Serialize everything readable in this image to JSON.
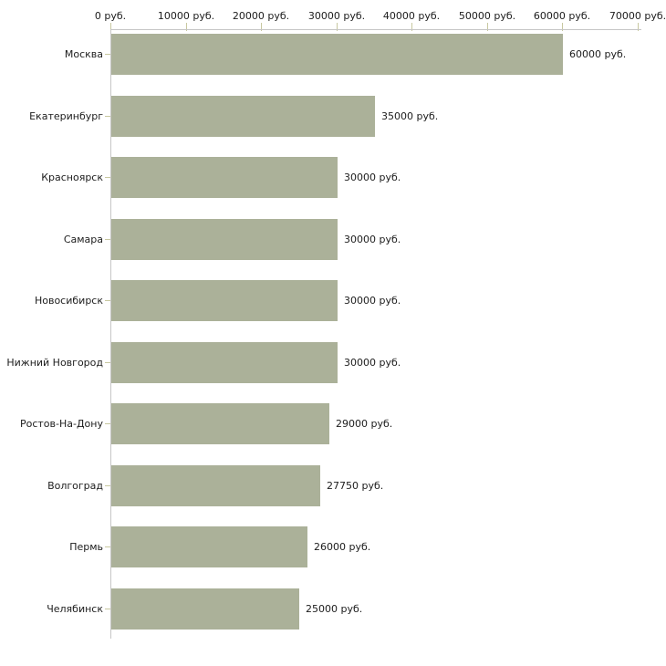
{
  "chart_data": {
    "type": "bar",
    "orientation": "horizontal",
    "title": "",
    "xlabel": "",
    "ylabel": "",
    "xlim": [
      0,
      70000
    ],
    "grid": false,
    "legend": false,
    "categories": [
      "Москва",
      "Екатеринбург",
      "Красноярск",
      "Самара",
      "Новосибирск",
      "Нижний Новгород",
      "Ростов-На-Дону",
      "Волгоград",
      "Пермь",
      "Челябинск"
    ],
    "values": [
      60000,
      35000,
      30000,
      30000,
      30000,
      30000,
      29000,
      27750,
      26000,
      25000
    ],
    "value_labels": [
      "60000 руб.",
      "35000 руб.",
      "30000 руб.",
      "30000 руб.",
      "30000 руб.",
      "30000 руб.",
      "29000 руб.",
      "27750 руб.",
      "26000 руб.",
      "25000 руб."
    ],
    "x_tick_labels": [
      "0 руб.",
      "10000 руб.",
      "20000 руб.",
      "30000 руб.",
      "40000 руб.",
      "50000 руб.",
      "60000 руб.",
      "70000 руб."
    ],
    "bar_color": "#abb199",
    "axis_color": "#c6c6c6",
    "tick_color": "#c8c8a0"
  }
}
